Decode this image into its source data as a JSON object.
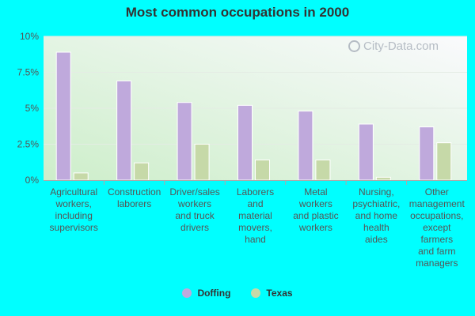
{
  "chart_data": {
    "type": "bar",
    "title": "Most common occupations in 2000",
    "categories": [
      "Agricultural workers, including supervisors",
      "Construction laborers",
      "Driver/sales workers and truck drivers",
      "Laborers and material movers, hand",
      "Metal workers and plastic workers",
      "Nursing, psychiatric, and home health aides",
      "Other management occupations, except farmers and farm managers"
    ],
    "category_lines": [
      [
        "Agricultural",
        "workers,",
        "including",
        "supervisors"
      ],
      [
        "Construction",
        "laborers"
      ],
      [
        "Driver/sales",
        "workers",
        "and truck",
        "drivers"
      ],
      [
        "Laborers",
        "and",
        "material",
        "movers,",
        "hand"
      ],
      [
        "Metal",
        "workers",
        "and plastic",
        "workers"
      ],
      [
        "Nursing,",
        "psychiatric,",
        "and home",
        "health",
        "aides"
      ],
      [
        "Other",
        "management",
        "occupations,",
        "except",
        "farmers",
        "and farm",
        "managers"
      ]
    ],
    "series": [
      {
        "name": "Doffing",
        "color": "#bfa9dc",
        "values": [
          8.9,
          6.9,
          5.4,
          5.2,
          4.8,
          3.9,
          3.7
        ]
      },
      {
        "name": "Texas",
        "color": "#c6d9a8",
        "values": [
          0.5,
          1.2,
          2.5,
          1.4,
          1.4,
          0.2,
          2.6
        ]
      }
    ],
    "y_ticks": [
      {
        "value": 0,
        "label": "0%"
      },
      {
        "value": 2.5,
        "label": "2.5%"
      },
      {
        "value": 5,
        "label": "5%"
      },
      {
        "value": 7.5,
        "label": "7.5%"
      },
      {
        "value": 10,
        "label": "10%"
      }
    ],
    "ylim": [
      0,
      10
    ],
    "xlabel": "",
    "ylabel": "",
    "grid": true,
    "legend_position": "bottom"
  },
  "watermark": "City-Data.com",
  "colors": {
    "page_background": "#00ffff",
    "plot_background_top": "#f7f7fb",
    "plot_background_bottom": "#d6f0d3",
    "axis": "#aaaaaa"
  }
}
